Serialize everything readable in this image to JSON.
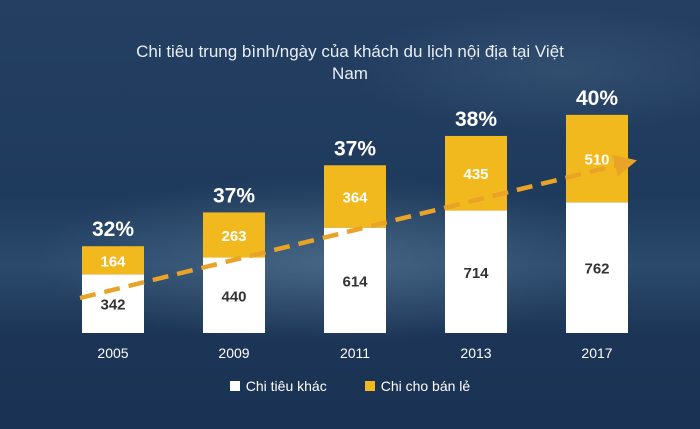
{
  "chart_data": {
    "type": "bar",
    "stacked": true,
    "title": "Chi tiêu trung bình/ngày của khách du lịch nội địa tại Việt Nam",
    "title_lines": [
      "Chi tiêu trung bình/ngày của khách du lịch nội địa tại Việt",
      "Nam"
    ],
    "categories": [
      "2005",
      "2009",
      "2011",
      "2013",
      "2017"
    ],
    "series": [
      {
        "name": "Chi tiêu khác",
        "values": [
          342,
          440,
          614,
          714,
          762
        ],
        "color": "#ffffff",
        "label_color": "#333333"
      },
      {
        "name": "Chi cho bán lẻ",
        "values": [
          164,
          263,
          364,
          435,
          510
        ],
        "color": "#f2b91e",
        "label_color": "#ffffff"
      }
    ],
    "top_labels": [
      "32%",
      "37%",
      "37%",
      "38%",
      "40%"
    ],
    "legend_position": "bottom-center",
    "grid": false,
    "trend_arrow_color": "#e9a326"
  }
}
